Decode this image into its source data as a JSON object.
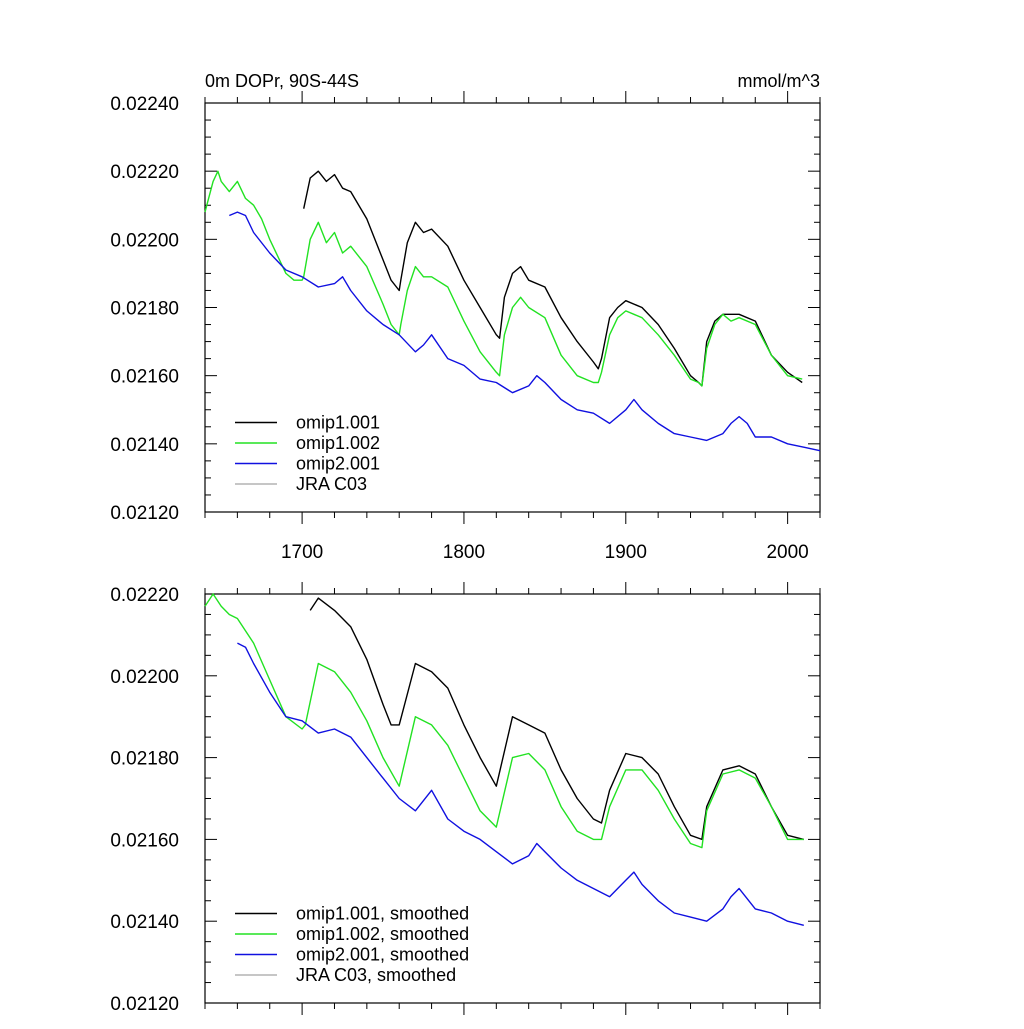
{
  "chart_data": [
    {
      "type": "line",
      "title": "0m DOPr, 90S-44S",
      "units": "mmol/m^3",
      "xlim": [
        1640,
        2020
      ],
      "ylim": [
        0.0212,
        0.0224
      ],
      "x_ticks": [
        1700,
        1800,
        1900,
        2000
      ],
      "x_tick_labels": [
        "1700",
        "1800",
        "1900",
        "2000"
      ],
      "y_ticks": [
        0.0212,
        0.0214,
        0.0216,
        0.0218,
        0.022,
        0.0222,
        0.0224
      ],
      "y_tick_labels": [
        "0.02120",
        "0.02140",
        "0.02160",
        "0.02180",
        "0.02200",
        "0.02220",
        "0.02240"
      ],
      "legend": "bottom-left",
      "series": [
        {
          "name": "omip1.001",
          "color": "#000000",
          "x": [
            1701,
            1705,
            1710,
            1715,
            1720,
            1725,
            1730,
            1740,
            1750,
            1755,
            1760,
            1761,
            1765,
            1770,
            1775,
            1780,
            1790,
            1800,
            1810,
            1820,
            1822,
            1825,
            1830,
            1835,
            1840,
            1850,
            1860,
            1870,
            1880,
            1883,
            1885,
            1890,
            1895,
            1900,
            1910,
            1920,
            1930,
            1940,
            1945,
            1947,
            1950,
            1955,
            1960,
            1965,
            1970,
            1980,
            1990,
            2000,
            2009
          ],
          "y": [
            0.02209,
            0.02218,
            0.0222,
            0.02217,
            0.02219,
            0.02215,
            0.02214,
            0.02206,
            0.02194,
            0.02188,
            0.02185,
            0.02188,
            0.02199,
            0.02205,
            0.02202,
            0.02203,
            0.02198,
            0.02188,
            0.0218,
            0.02172,
            0.02171,
            0.02183,
            0.0219,
            0.02192,
            0.02188,
            0.02186,
            0.02177,
            0.0217,
            0.02164,
            0.02162,
            0.02165,
            0.02177,
            0.0218,
            0.02182,
            0.0218,
            0.02175,
            0.02168,
            0.0216,
            0.02158,
            0.02157,
            0.0217,
            0.02176,
            0.02178,
            0.02178,
            0.02178,
            0.02176,
            0.02166,
            0.02161,
            0.02158
          ]
        },
        {
          "name": "omip1.002",
          "color": "#22e222",
          "x": [
            1640,
            1645,
            1648,
            1650,
            1655,
            1660,
            1665,
            1670,
            1675,
            1680,
            1690,
            1695,
            1700,
            1701,
            1705,
            1710,
            1715,
            1720,
            1725,
            1730,
            1740,
            1750,
            1755,
            1760,
            1761,
            1765,
            1770,
            1775,
            1780,
            1790,
            1800,
            1810,
            1820,
            1822,
            1825,
            1830,
            1835,
            1840,
            1850,
            1860,
            1870,
            1880,
            1883,
            1885,
            1890,
            1895,
            1900,
            1910,
            1920,
            1930,
            1940,
            1945,
            1947,
            1950,
            1955,
            1960,
            1965,
            1970,
            1980,
            1990,
            2000,
            2009
          ],
          "y": [
            0.02208,
            0.02217,
            0.0222,
            0.02217,
            0.02214,
            0.02217,
            0.02212,
            0.0221,
            0.02206,
            0.022,
            0.0219,
            0.02188,
            0.02188,
            0.02189,
            0.022,
            0.02205,
            0.02199,
            0.02202,
            0.02196,
            0.02198,
            0.02192,
            0.02181,
            0.02175,
            0.02172,
            0.02175,
            0.02185,
            0.02192,
            0.02189,
            0.02189,
            0.02186,
            0.02176,
            0.02167,
            0.02161,
            0.0216,
            0.02172,
            0.0218,
            0.02183,
            0.0218,
            0.02177,
            0.02166,
            0.0216,
            0.02158,
            0.02158,
            0.02161,
            0.02172,
            0.02177,
            0.02179,
            0.02177,
            0.02172,
            0.02166,
            0.02159,
            0.02158,
            0.02157,
            0.02168,
            0.02175,
            0.02178,
            0.02176,
            0.02177,
            0.02175,
            0.02166,
            0.0216,
            0.02159
          ]
        },
        {
          "name": "omip2.001",
          "color": "#1010e0",
          "x": [
            1655,
            1660,
            1665,
            1670,
            1680,
            1690,
            1700,
            1710,
            1720,
            1725,
            1730,
            1740,
            1750,
            1760,
            1770,
            1775,
            1780,
            1790,
            1800,
            1810,
            1820,
            1830,
            1840,
            1845,
            1850,
            1860,
            1870,
            1880,
            1890,
            1900,
            1905,
            1910,
            1920,
            1930,
            1940,
            1950,
            1960,
            1965,
            1970,
            1975,
            1980,
            1990,
            2000,
            2010,
            2020
          ],
          "y": [
            0.02207,
            0.02208,
            0.02207,
            0.02202,
            0.02196,
            0.02191,
            0.02189,
            0.02186,
            0.02187,
            0.02189,
            0.02185,
            0.02179,
            0.02175,
            0.02172,
            0.02167,
            0.02169,
            0.02172,
            0.02165,
            0.02163,
            0.02159,
            0.02158,
            0.02155,
            0.02157,
            0.0216,
            0.02158,
            0.02153,
            0.0215,
            0.02149,
            0.02146,
            0.0215,
            0.02153,
            0.0215,
            0.02146,
            0.02143,
            0.02142,
            0.02141,
            0.02143,
            0.02146,
            0.02148,
            0.02146,
            0.02142,
            0.02142,
            0.0214,
            0.02139,
            0.02138
          ]
        },
        {
          "name": "JRA C03",
          "color": "#b4b4b4",
          "x": [],
          "y": []
        }
      ]
    },
    {
      "type": "line",
      "xlim": [
        1640,
        2020
      ],
      "ylim": [
        0.0212,
        0.0222
      ],
      "x_ticks": [
        1700,
        1800,
        1900,
        2000
      ],
      "y_ticks": [
        0.0212,
        0.0214,
        0.0216,
        0.0218,
        0.022,
        0.0222
      ],
      "y_tick_labels": [
        "0.02120",
        "0.02140",
        "0.02160",
        "0.02180",
        "0.02200",
        "0.02220"
      ],
      "legend": "bottom-left",
      "series": [
        {
          "name": "omip1.001, smoothed",
          "color": "#000000",
          "x": [
            1705,
            1710,
            1720,
            1730,
            1740,
            1750,
            1755,
            1760,
            1770,
            1780,
            1790,
            1800,
            1810,
            1820,
            1830,
            1840,
            1850,
            1860,
            1870,
            1880,
            1885,
            1890,
            1900,
            1910,
            1920,
            1930,
            1940,
            1947,
            1950,
            1960,
            1970,
            1980,
            1990,
            2000,
            2010
          ],
          "y": [
            0.02216,
            0.02219,
            0.02216,
            0.02212,
            0.02204,
            0.02193,
            0.02188,
            0.02188,
            0.02203,
            0.02201,
            0.02197,
            0.02188,
            0.0218,
            0.02173,
            0.0219,
            0.02188,
            0.02186,
            0.02177,
            0.0217,
            0.02165,
            0.02164,
            0.02172,
            0.02181,
            0.0218,
            0.02176,
            0.02168,
            0.02161,
            0.0216,
            0.02168,
            0.02177,
            0.02178,
            0.02176,
            0.02168,
            0.02161,
            0.0216
          ]
        },
        {
          "name": "omip1.002, smoothed",
          "color": "#22e222",
          "x": [
            1640,
            1645,
            1650,
            1655,
            1660,
            1670,
            1680,
            1690,
            1700,
            1702,
            1710,
            1715,
            1720,
            1730,
            1740,
            1750,
            1760,
            1770,
            1780,
            1790,
            1800,
            1810,
            1820,
            1830,
            1840,
            1850,
            1860,
            1870,
            1880,
            1885,
            1890,
            1900,
            1910,
            1920,
            1930,
            1940,
            1947,
            1950,
            1960,
            1970,
            1980,
            1990,
            2000,
            2010
          ],
          "y": [
            0.02217,
            0.0222,
            0.02217,
            0.02215,
            0.02214,
            0.02208,
            0.02199,
            0.0219,
            0.02187,
            0.02188,
            0.02203,
            0.02202,
            0.02201,
            0.02196,
            0.02189,
            0.0218,
            0.02173,
            0.0219,
            0.02188,
            0.02183,
            0.02175,
            0.02167,
            0.02163,
            0.0218,
            0.02181,
            0.02177,
            0.02168,
            0.02162,
            0.0216,
            0.0216,
            0.02168,
            0.02177,
            0.02177,
            0.02172,
            0.02165,
            0.02159,
            0.02158,
            0.02167,
            0.02176,
            0.02177,
            0.02175,
            0.02168,
            0.0216,
            0.0216
          ]
        },
        {
          "name": "omip2.001, smoothed",
          "color": "#1010e0",
          "x": [
            1660,
            1665,
            1670,
            1680,
            1690,
            1700,
            1710,
            1720,
            1730,
            1740,
            1750,
            1760,
            1770,
            1780,
            1790,
            1800,
            1810,
            1820,
            1830,
            1840,
            1845,
            1850,
            1860,
            1870,
            1880,
            1890,
            1900,
            1905,
            1910,
            1920,
            1930,
            1940,
            1950,
            1960,
            1965,
            1970,
            1980,
            1990,
            2000,
            2010
          ],
          "y": [
            0.02208,
            0.02207,
            0.02203,
            0.02196,
            0.0219,
            0.02189,
            0.02186,
            0.02187,
            0.02185,
            0.0218,
            0.02175,
            0.0217,
            0.02167,
            0.02172,
            0.02165,
            0.02162,
            0.0216,
            0.02157,
            0.02154,
            0.02156,
            0.02159,
            0.02157,
            0.02153,
            0.0215,
            0.02148,
            0.02146,
            0.0215,
            0.02152,
            0.02149,
            0.02145,
            0.02142,
            0.02141,
            0.0214,
            0.02143,
            0.02146,
            0.02148,
            0.02143,
            0.02142,
            0.0214,
            0.02139
          ]
        },
        {
          "name": "JRA C03, smoothed",
          "color": "#b4b4b4",
          "x": [],
          "y": []
        }
      ]
    }
  ]
}
